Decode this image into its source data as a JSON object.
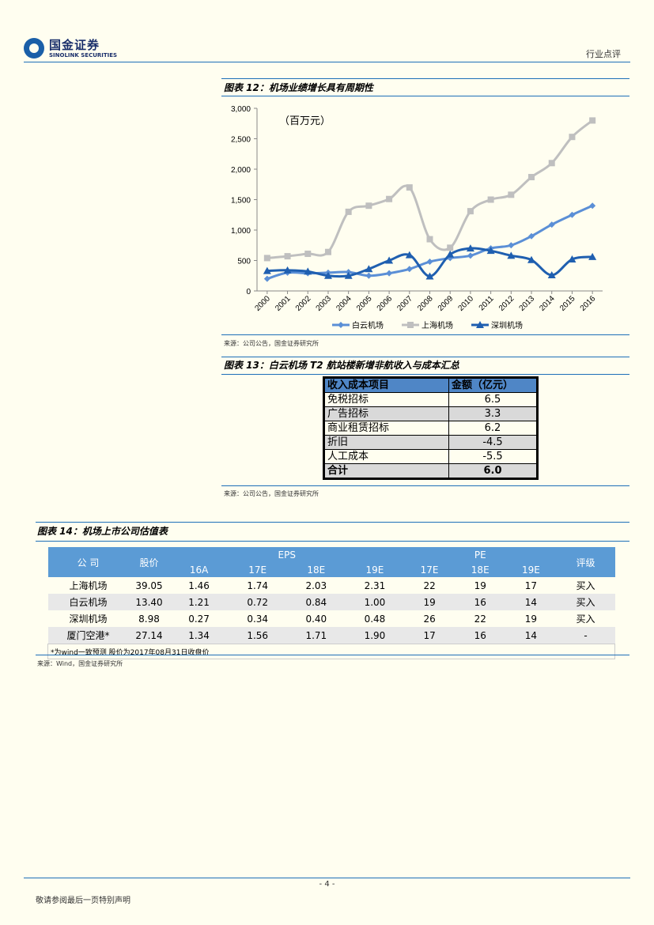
{
  "header": {
    "logo_cn": "国金证券",
    "logo_en": "SINOLINK SECURITIES",
    "section": "行业点评"
  },
  "fig12": {
    "title": "图表 12：机场业绩增长具有周期性",
    "source": "来源：公司公告，国金证券研究所"
  },
  "chart_data": {
    "type": "line",
    "title": "",
    "unit_annotation": "（百万元）",
    "categories": [
      "2000",
      "2001",
      "2002",
      "2003",
      "2004",
      "2005",
      "2006",
      "2007",
      "2008",
      "2009",
      "2010",
      "2011",
      "2012",
      "2013",
      "2014",
      "2015",
      "2016"
    ],
    "ylim": [
      0,
      3000
    ],
    "yticks": [
      "0",
      "500",
      "1,000",
      "1,500",
      "2,000",
      "2,500",
      "3,000"
    ],
    "ytick_values": [
      0,
      500,
      1000,
      1500,
      2000,
      2500,
      3000
    ],
    "grid": false,
    "legend_position": "bottom",
    "series": [
      {
        "name": "白云机场",
        "color": "#5b8fd6",
        "marker": "diamond",
        "values": [
          200,
          300,
          290,
          300,
          310,
          250,
          290,
          360,
          480,
          540,
          580,
          700,
          750,
          900,
          1090,
          1250,
          1400
        ]
      },
      {
        "name": "上海机场",
        "color": "#bfbfbf",
        "marker": "square",
        "values": [
          540,
          570,
          610,
          640,
          1300,
          1400,
          1510,
          1700,
          850,
          710,
          1310,
          1500,
          1580,
          1870,
          2100,
          2530,
          2800
        ]
      },
      {
        "name": "深圳机场",
        "color": "#1f5fb0",
        "marker": "triangle",
        "values": [
          330,
          340,
          320,
          250,
          250,
          360,
          500,
          590,
          240,
          600,
          700,
          660,
          580,
          510,
          260,
          520,
          560
        ]
      }
    ]
  },
  "fig13": {
    "title": "图表 13：白云机场 T2 航站楼新增非航收入与成本汇总",
    "headers": [
      "收入成本项目",
      "金额（亿元）"
    ],
    "rows": [
      {
        "item": "免税招标",
        "value": "6.5"
      },
      {
        "item": "广告招标",
        "value": "3.3"
      },
      {
        "item": "商业租赁招标",
        "value": "6.2"
      },
      {
        "item": "折旧",
        "value": "-4.5"
      },
      {
        "item": "人工成本",
        "value": "-5.5"
      }
    ],
    "total": {
      "item": "合计",
      "value": "6.0"
    },
    "source": "来源：公司公告，国金证券研究所"
  },
  "fig14": {
    "title": "图表 14：机场上市公司估值表",
    "headers": {
      "company": "公 司",
      "price": "股价",
      "eps": "EPS",
      "pe": "PE",
      "rating": "评级",
      "eps_years": [
        "16A",
        "17E",
        "18E",
        "19E"
      ],
      "pe_years": [
        "17E",
        "18E",
        "19E"
      ]
    },
    "rows": [
      {
        "company": "上海机场",
        "price": "39.05",
        "eps": [
          "1.46",
          "1.74",
          "2.03",
          "2.31"
        ],
        "pe": [
          "22",
          "19",
          "17"
        ],
        "rating": "买入"
      },
      {
        "company": "白云机场",
        "price": "13.40",
        "eps": [
          "1.21",
          "0.72",
          "0.84",
          "1.00"
        ],
        "pe": [
          "19",
          "16",
          "14"
        ],
        "rating": "买入"
      },
      {
        "company": "深圳机场",
        "price": "8.98",
        "eps": [
          "0.27",
          "0.34",
          "0.40",
          "0.48"
        ],
        "pe": [
          "26",
          "22",
          "19"
        ],
        "rating": "买入"
      },
      {
        "company": "厦门空港*",
        "price": "27.14",
        "eps": [
          "1.34",
          "1.56",
          "1.71",
          "1.90"
        ],
        "pe": [
          "17",
          "16",
          "14"
        ],
        "rating": "-"
      }
    ],
    "note": "*为wind一致预测 股价为2017年08月31日收盘价",
    "source": "来源：Wind，国金证券研究所"
  },
  "footer": {
    "page": "- 4 -",
    "disclaimer": "敬请参阅最后一页特别声明"
  }
}
